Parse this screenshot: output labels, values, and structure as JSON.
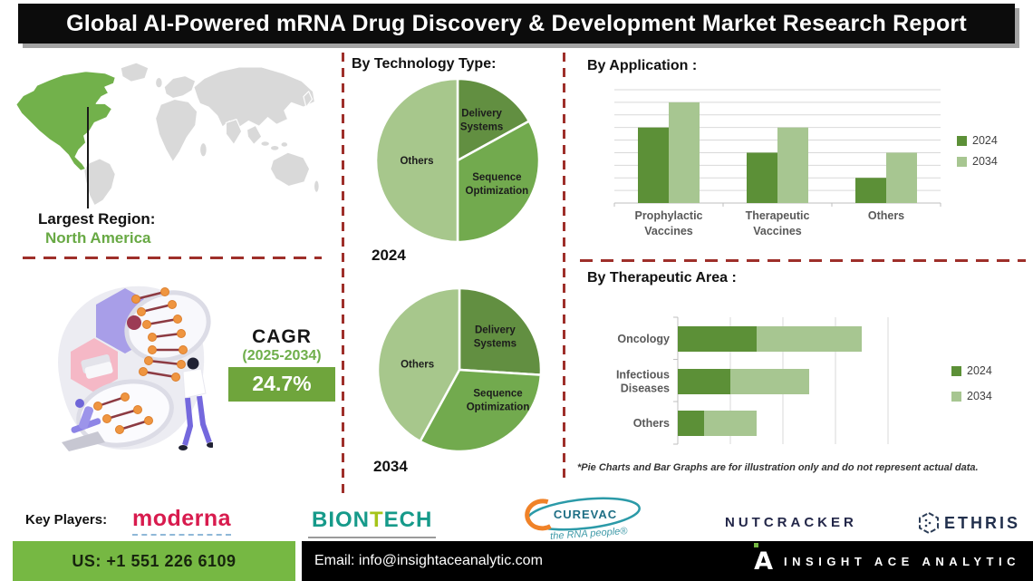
{
  "title": "Global AI-Powered mRNA Drug Discovery & Development Market Research Report",
  "region": {
    "label": "Largest Region:",
    "value": "North America"
  },
  "cagr": {
    "label": "CAGR",
    "period": "(2025-2034)",
    "value": "24.7%"
  },
  "headings": {
    "technology": "By Technology Type:",
    "application": "By Application :",
    "therapeutic": "By Therapeutic Area :"
  },
  "footnote": "*Pie Charts and Bar Graphs are for illustration only and do not represent actual data.",
  "players": {
    "label": "Key Players:",
    "moderna": "moderna",
    "biontech": {
      "pre": "BION",
      "mid": "T",
      "post": "ECH"
    },
    "curevac": {
      "name": "CUREVAC",
      "tagline": "the RNA people®"
    },
    "nutcracker": "NUTCRACKER",
    "ethris": "ETHRIS"
  },
  "contact": {
    "phone": "US: +1 551 226 6109",
    "email": "Email: info@insightaceanalytic.com",
    "logo_letter": "A",
    "brand": "INSIGHT ACE ANALYTIC"
  },
  "colors": {
    "accent_green": "#76b843",
    "dark_green": "#5c9037",
    "mid_green": "#72aa4e",
    "light_green": "#a7c691",
    "pie_dark": "#628f41",
    "red_dash": "#9e2f2a",
    "map_gray": "#d9d9d9"
  },
  "chart_data": [
    {
      "id": "pie-2024",
      "type": "pie",
      "year_label": "2024",
      "title": "By Technology Type:",
      "slices": [
        {
          "label": "Delivery Systems",
          "pct": 17,
          "color": "#628f41",
          "label_r": 0.58
        },
        {
          "label": "Sequence Optimization",
          "pct": 33,
          "color": "#72aa4e",
          "label_r": 0.56
        },
        {
          "label": "Others",
          "pct": 50,
          "color": "#a7c78c",
          "label_r": 0.5
        }
      ]
    },
    {
      "id": "pie-2034",
      "type": "pie",
      "year_label": "2034",
      "title": "By Technology Type:",
      "slices": [
        {
          "label": "Delivery Systems",
          "pct": 26,
          "color": "#628f41",
          "label_r": 0.6
        },
        {
          "label": "Sequence Optimization",
          "pct": 32,
          "color": "#72aa4e",
          "label_r": 0.6,
          "label_angle": 128
        },
        {
          "label": "Others",
          "pct": 42,
          "color": "#a7c78c",
          "label_r": 0.52,
          "label_angle": 278
        }
      ]
    },
    {
      "id": "app-chart",
      "type": "bar",
      "title": "By Application :",
      "categories": [
        "Prophylactic Vaccines",
        "Therapeutic Vaccines",
        "Others"
      ],
      "series": [
        {
          "name": "2024",
          "color": "#5c9037",
          "values": [
            6,
            4,
            2
          ]
        },
        {
          "name": "2034",
          "color": "#a7c691",
          "values": [
            8,
            6,
            4
          ]
        }
      ],
      "ylim": [
        0,
        9
      ],
      "grid": true,
      "legend_position": "right"
    },
    {
      "id": "ther-chart",
      "type": "stacked-bar-horizontal",
      "title": "By Therapeutic Area :",
      "categories": [
        "Oncology",
        "Infectious Diseases",
        "Others"
      ],
      "series": [
        {
          "name": "2024",
          "color": "#5c9037",
          "values": [
            1.5,
            1.0,
            0.5
          ]
        },
        {
          "name": "2034",
          "color": "#a7c691",
          "values": [
            2.0,
            1.5,
            1.0
          ]
        }
      ],
      "xlim": [
        0,
        4.5
      ],
      "grid": true,
      "legend_position": "right"
    }
  ]
}
